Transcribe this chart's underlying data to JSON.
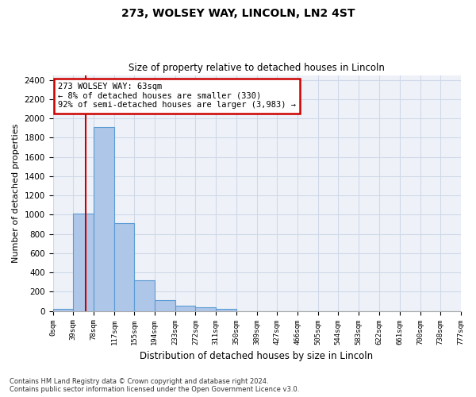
{
  "title1": "273, WOLSEY WAY, LINCOLN, LN2 4ST",
  "title2": "Size of property relative to detached houses in Lincoln",
  "xlabel": "Distribution of detached houses by size in Lincoln",
  "ylabel": "Number of detached properties",
  "footnote1": "Contains HM Land Registry data © Crown copyright and database right 2024.",
  "footnote2": "Contains public sector information licensed under the Open Government Licence v3.0.",
  "annotation_line1": "273 WOLSEY WAY: 63sqm",
  "annotation_line2": "← 8% of detached houses are smaller (330)",
  "annotation_line3": "92% of semi-detached houses are larger (3,983) →",
  "bar_left_edges": [
    0,
    39,
    78,
    117,
    155,
    194,
    233,
    272,
    311,
    350,
    389,
    427,
    466,
    505,
    544,
    583,
    622,
    661,
    700,
    738
  ],
  "bar_widths": [
    39,
    39,
    39,
    38,
    39,
    39,
    39,
    39,
    39,
    39,
    38,
    39,
    39,
    39,
    39,
    39,
    39,
    39,
    38,
    39
  ],
  "bar_heights": [
    20,
    1010,
    1910,
    915,
    315,
    110,
    55,
    35,
    20,
    0,
    0,
    0,
    0,
    0,
    0,
    0,
    0,
    0,
    0,
    0
  ],
  "bar_color": "#aec6e8",
  "bar_edge_color": "#5b9bd5",
  "grid_color": "#d0d8e8",
  "background_color": "#eef2f8",
  "red_line_x": 63,
  "red_line_color": "#cc0000",
  "annotation_box_color": "#cc0000",
  "ylim": [
    0,
    2450
  ],
  "xlim": [
    0,
    777
  ],
  "xtick_labels": [
    "0sqm",
    "39sqm",
    "78sqm",
    "117sqm",
    "155sqm",
    "194sqm",
    "233sqm",
    "272sqm",
    "311sqm",
    "350sqm",
    "389sqm",
    "427sqm",
    "466sqm",
    "505sqm",
    "544sqm",
    "583sqm",
    "622sqm",
    "661sqm",
    "700sqm",
    "738sqm",
    "777sqm"
  ],
  "xtick_positions": [
    0,
    39,
    78,
    117,
    155,
    194,
    233,
    272,
    311,
    350,
    389,
    427,
    466,
    505,
    544,
    583,
    622,
    661,
    700,
    738,
    777
  ],
  "ytick_positions": [
    0,
    200,
    400,
    600,
    800,
    1000,
    1200,
    1400,
    1600,
    1800,
    2000,
    2200,
    2400
  ]
}
